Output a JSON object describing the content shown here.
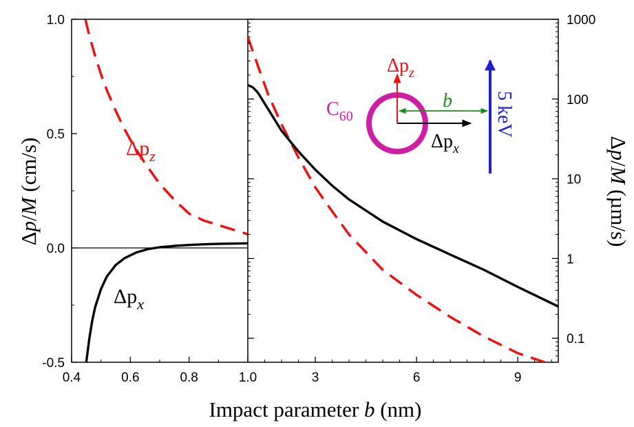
{
  "chart_data": [
    {
      "type": "line",
      "panel": "left",
      "xlabel": "Impact parameter b (nm)",
      "ylabel": "Δp/M (cm/s)",
      "xlim": [
        0.4,
        1.0
      ],
      "ylim": [
        -0.5,
        1.0
      ],
      "x_ticks": [
        "0.4",
        "0.6",
        "0.8",
        "1.0"
      ],
      "y_ticks": [
        "-0.5",
        "0.0",
        "0.5",
        "1.0"
      ],
      "zero_line": true,
      "series": [
        {
          "name": "Δpz",
          "color": "#ee1111",
          "style": "dashed",
          "x": [
            0.447,
            0.46,
            0.48,
            0.5,
            0.52,
            0.55,
            0.58,
            0.61,
            0.65,
            0.7,
            0.75,
            0.8,
            0.85,
            0.9,
            0.95,
            1.0
          ],
          "y": [
            1.0,
            0.93,
            0.84,
            0.76,
            0.69,
            0.6,
            0.52,
            0.45,
            0.37,
            0.28,
            0.21,
            0.15,
            0.12,
            0.1,
            0.08,
            0.06
          ]
        },
        {
          "name": "Δpx",
          "color": "#000000",
          "style": "solid",
          "x": [
            0.45,
            0.46,
            0.47,
            0.48,
            0.5,
            0.52,
            0.55,
            0.58,
            0.62,
            0.66,
            0.7,
            0.75,
            0.8,
            0.85,
            0.9,
            1.0
          ],
          "y": [
            -0.5,
            -0.4,
            -0.32,
            -0.26,
            -0.18,
            -0.125,
            -0.075,
            -0.045,
            -0.02,
            -0.005,
            0.003,
            0.009,
            0.013,
            0.016,
            0.018,
            0.02
          ]
        }
      ]
    },
    {
      "type": "line",
      "panel": "right",
      "ylabel": "Δp/M (µm/s)",
      "yscale": "log",
      "xlim": [
        1.0,
        10.2
      ],
      "ylim": [
        0.05,
        1000
      ],
      "x_ticks": [
        "3",
        "6",
        "9"
      ],
      "y_ticks": [
        "0.1",
        "1",
        "10",
        "100",
        "1000"
      ],
      "series": [
        {
          "name": "Δpz",
          "color": "#ee1111",
          "style": "dashed",
          "x": [
            1.0,
            1.3,
            1.6,
            2.0,
            2.5,
            3.0,
            3.5,
            4.0,
            5.0,
            6.0,
            7.0,
            8.0,
            9.0,
            9.8
          ],
          "y": [
            600,
            260,
            115,
            48,
            18.5,
            7.8,
            3.9,
            2.0,
            0.72,
            0.35,
            0.185,
            0.105,
            0.065,
            0.05
          ]
        },
        {
          "name": "Δpx",
          "color": "#000000",
          "style": "solid",
          "x": [
            1.0,
            1.15,
            1.3,
            1.6,
            2.0,
            2.5,
            3.0,
            3.5,
            4.0,
            5.0,
            6.0,
            7.0,
            8.0,
            9.0,
            10.2
          ],
          "y": [
            150,
            140,
            120,
            75,
            40,
            22,
            13,
            8.2,
            5.5,
            2.9,
            1.75,
            1.12,
            0.72,
            0.44,
            0.25
          ]
        }
      ]
    }
  ],
  "annotations": {
    "left_dpz": "Δp",
    "left_dpz_sub": "z",
    "left_dpx": "Δp",
    "left_dpx_sub": "x",
    "inset_c": "C",
    "inset_c_sub": "60",
    "inset_dpz": "Δp",
    "inset_dpz_sub": "z",
    "inset_b": "b",
    "inset_dpx": "Δp",
    "inset_dpx_sub": "x",
    "inset_energy": "5 keV",
    "inset_colors": {
      "molecule": "#cc1fa6",
      "ion_beam": "#2222cc",
      "impact_arrow": "#1a8c1a",
      "dpz_arrow": "#ee1111",
      "dpx_arrow": "#000000"
    }
  }
}
